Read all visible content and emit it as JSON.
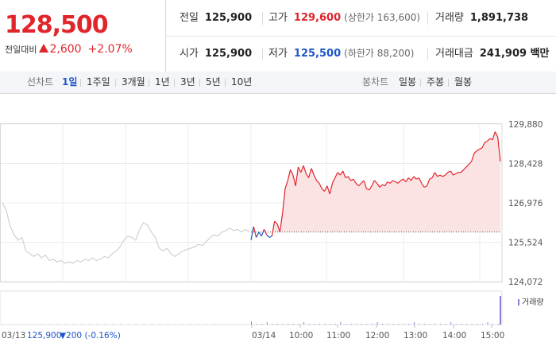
{
  "header": {
    "price": "128,500",
    "change_label": "전일대비",
    "change_amount": "2,600",
    "change_pct": "+2.07%",
    "prev_close_label": "전일",
    "prev_close": "125,900",
    "high_label": "고가",
    "high": "129,600",
    "upper_limit": "(상한가 163,600)",
    "volume_label": "거래량",
    "volume": "1,891,738",
    "open_label": "시가",
    "open": "125,900",
    "low_label": "저가",
    "low": "125,500",
    "lower_limit": "(하한가 88,200)",
    "turnover_label": "거래대금",
    "turnover": "241,909 백만"
  },
  "toolbar": {
    "line_label": "선차트",
    "ranges": [
      "1일",
      "1주일",
      "3개월",
      "1년",
      "3년",
      "5년",
      "10년"
    ],
    "active_range": "1일",
    "candle_label": "봉차트",
    "candles": [
      "일봉",
      "주봉",
      "월봉"
    ]
  },
  "colors": {
    "up": "#e0252b",
    "down": "#1e56c8",
    "prev_day": "#c8c8c8",
    "fill": "#fbe3e4"
  },
  "chart_data": {
    "type": "line",
    "y_ticks": [
      "129,880",
      "128,428",
      "126,976",
      "125,524",
      "124,072"
    ],
    "ylim": [
      124072,
      129880
    ],
    "x_ticks": [
      "03/14",
      "10:00",
      "11:00",
      "12:00",
      "13:00",
      "14:00",
      "15:00"
    ],
    "prev_close_ref": 125900,
    "prev_day_label": "03/13",
    "prev_day_close": "125,900",
    "prev_day_change": "▼200 (-0.16%)",
    "volume_legend": "거래량",
    "series": [
      {
        "name": "03/13",
        "x": [
          0,
          1,
          2,
          3,
          4,
          5,
          6,
          7,
          8,
          9,
          10,
          11,
          12,
          13,
          14,
          15,
          16,
          17,
          18,
          19,
          20,
          21,
          22,
          23,
          24,
          25,
          26,
          27,
          28,
          29,
          30,
          31,
          32,
          33,
          34,
          35,
          36,
          37,
          38,
          39,
          40,
          41,
          42,
          43,
          44,
          45,
          46,
          47,
          48,
          49,
          50,
          51,
          52,
          53,
          54,
          55,
          56,
          57,
          58,
          59,
          60,
          61,
          62,
          63
        ],
        "y": [
          126980,
          126700,
          126100,
          125800,
          125600,
          125700,
          125200,
          125100,
          125000,
          125100,
          124950,
          125050,
          124850,
          124900,
          124800,
          124850,
          124750,
          124800,
          124750,
          124850,
          124800,
          124900,
          124850,
          124950,
          124850,
          124900,
          125000,
          124950,
          125100,
          125200,
          125350,
          125600,
          125750,
          125700,
          125600,
          126000,
          126250,
          126150,
          125900,
          125700,
          125300,
          125200,
          125300,
          125100,
          125000,
          125100,
          125200,
          125250,
          125300,
          125350,
          125450,
          125400,
          125550,
          125700,
          125800,
          125750,
          125900,
          125950,
          126050,
          125950,
          126000,
          125900,
          126000,
          125900
        ]
      },
      {
        "name": "03/14",
        "x": [
          64,
          65,
          66,
          67,
          68,
          69,
          70,
          71,
          72,
          73,
          74,
          75,
          76,
          77,
          78,
          79,
          80,
          81,
          82,
          83,
          84,
          85,
          86,
          87,
          88,
          89,
          90,
          91,
          92,
          93,
          94,
          95,
          96,
          97,
          98,
          99,
          100,
          101,
          102,
          103,
          104,
          105,
          106,
          107,
          108,
          109,
          110,
          111,
          112,
          113,
          114,
          115,
          116,
          117,
          118,
          119,
          120,
          121,
          122,
          123,
          124,
          125,
          126,
          127,
          128,
          129,
          130,
          131,
          132,
          133,
          134,
          135,
          136,
          137,
          138,
          139,
          140,
          141,
          142,
          143,
          144,
          145,
          146,
          147,
          148,
          149,
          150,
          151,
          152,
          153,
          154,
          155,
          156,
          157,
          158,
          159
        ],
        "y": [
          125600,
          126100,
          125700,
          125900,
          125750,
          126000,
          125800,
          125700,
          125750,
          126300,
          126200,
          125900,
          126600,
          127500,
          127800,
          128200,
          128000,
          127600,
          128300,
          128100,
          128350,
          128050,
          127900,
          128250,
          128000,
          127800,
          127700,
          127500,
          127400,
          127600,
          127300,
          127700,
          127900,
          128100,
          128000,
          128150,
          127900,
          127950,
          127800,
          127850,
          127700,
          127600,
          127700,
          127800,
          127500,
          127450,
          127600,
          127800,
          127700,
          127550,
          127650,
          127600,
          127750,
          127700,
          127800,
          127750,
          127700,
          127800,
          127850,
          127750,
          127900,
          127800,
          127950,
          127850,
          127900,
          127700,
          127550,
          127600,
          127850,
          127900,
          128100,
          127950,
          128000,
          127950,
          128000,
          128100,
          128150,
          128000,
          128050,
          128100,
          128100,
          128200,
          128300,
          128400,
          128500,
          128800,
          128900,
          128950,
          129000,
          129200,
          129250,
          129350,
          129300,
          129600,
          129400,
          128500
        ]
      }
    ],
    "legend": "top-right",
    "grid": true
  }
}
